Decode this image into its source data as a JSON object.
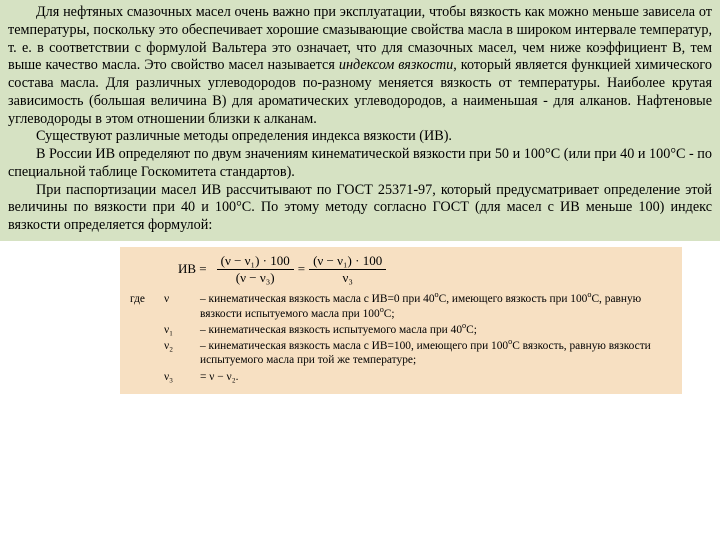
{
  "colors": {
    "top_bg": "#d6e2c3",
    "formula_bg": "#f7e0c2",
    "text": "#000000"
  },
  "top": {
    "p1_a": "Для нефтяных смазочных масел очень важно при эксплуатации, чтобы вязкость как можно меньше зависела от температуры, поскольку это обеспечивает хорошие смазывающие свойства масла в широком интервале температур, т. е. в соответствии с формулой Вальтера это означает, что для смазочных масел, чем ниже коэффициент В, тем выше качество масла. Это свойство масел называется ",
    "p1_ital": "индексом вязкости",
    "p1_b": ", который является функцией химического состава масла. Для различных углеводородов по-разному меняется вязкость от температуры. Наиболее крутая зависимость (большая величина В) для ароматических углеводородов, а наименьшая - для алканов. Нафтеновые углеводороды в этом отношении близки к алканам.",
    "p2": "Существуют различные методы определения индекса вязкости (ИВ).",
    "p3": "В России ИВ определяют по двум значениям кинематической вязкости при 50 и 100°С (или при 40 и 100°С - по специальной таблице Госкомитета стандартов).",
    "p4": "При паспортизации масел ИВ рассчитывают по ГОСТ 25371-97, который предусматривает определение этой величины по вязкости при 40 и 100°С. По этому методу согласно ГОСТ (для масел с ИВ меньше 100) индекс вязкости определяется формулой:"
  },
  "formula": {
    "lhs": "ИВ =",
    "num1": "(ν − ν₁) · 100",
    "den1": "(ν − ν₃)",
    "eq": " = ",
    "num2": "(ν − ν₁) · 100",
    "den2": "ν₃"
  },
  "defs": {
    "lead": "где",
    "rows": [
      {
        "sym": "ν",
        "txt_html": "– кинематическая вязкость масла с ИВ=0 при 40<sup>o</sup>С, имеющего вязкость при 100<sup>o</sup>С, равную вязкости испытуемого масла при 100<sup>o</sup>С;"
      },
      {
        "sym": "ν₁",
        "txt_html": "– кинематическая вязкость испытуемого масла при 40<sup>o</sup>С;"
      },
      {
        "sym": "ν₂",
        "txt_html": "– кинематическая вязкость масла с ИВ=100, имеющего при 100<sup>o</sup>С вязкость, равную вязкости испытуемого масла при той же температуре;"
      },
      {
        "sym": "ν₃",
        "txt_html": "= ν − ν₂."
      }
    ]
  }
}
